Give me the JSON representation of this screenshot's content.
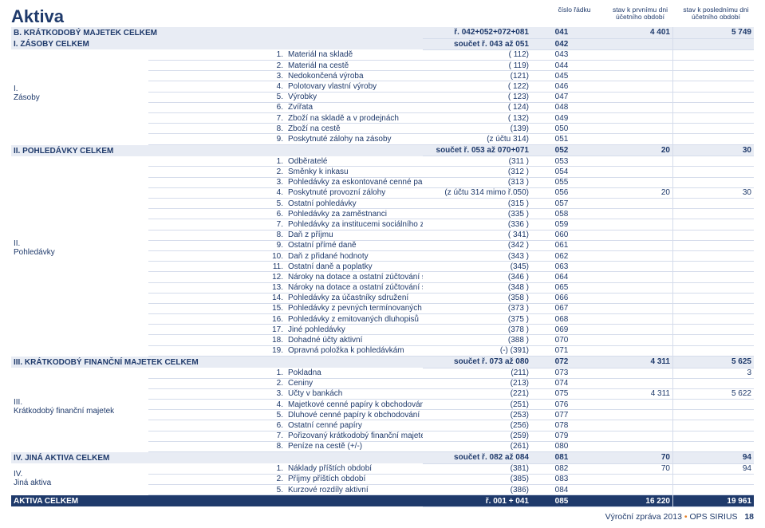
{
  "title": "Aktiva",
  "headers": {
    "c_line": "číslo řádku",
    "c_val": "stav k prvnímu dni účetního období",
    "c_val2": "stav k poslednímu dni účetního období"
  },
  "footer": {
    "text": "Výroční zpráva 2013",
    "org": "OPS SIRIUS",
    "page": "18"
  },
  "cols": {
    "side": 130,
    "num": 20,
    "ref": 130,
    "line": 70,
    "val": 95,
    "val2": 95
  },
  "rows": [
    {
      "type": "section",
      "side": "B.  KRÁTKODOBÝ MAJETEK CELKEM",
      "num": "",
      "desc": "",
      "ref": "ř. 042+052+072+081",
      "line": "041",
      "v1": "4 401",
      "v2": "5 749"
    },
    {
      "type": "section",
      "side": "I.   ZÁSOBY CELKEM",
      "num": "",
      "desc": "",
      "ref": "součet ř. 043 až 051",
      "line": "042",
      "v1": "",
      "v2": ""
    },
    {
      "type": "row",
      "side_label": "I.\nZásoby",
      "side_span": 9,
      "num": "1.",
      "desc": "Materiál na skladě",
      "ref": "( 112)",
      "line": "043",
      "v1": "",
      "v2": ""
    },
    {
      "type": "row",
      "num": "2.",
      "desc": "Materiál na cestě",
      "ref": "( 119)",
      "line": "044",
      "v1": "",
      "v2": ""
    },
    {
      "type": "row",
      "num": "3.",
      "desc": "Nedokončená výroba",
      "ref": "(121)",
      "line": "045",
      "v1": "",
      "v2": ""
    },
    {
      "type": "row",
      "num": "4.",
      "desc": "Polotovary vlastní výroby",
      "ref": "( 122)",
      "line": "046",
      "v1": "",
      "v2": ""
    },
    {
      "type": "row",
      "num": "5.",
      "desc": "Výrobky",
      "ref": "( 123)",
      "line": "047",
      "v1": "",
      "v2": ""
    },
    {
      "type": "row",
      "num": "6.",
      "desc": "Zvířata",
      "ref": "( 124)",
      "line": "048",
      "v1": "",
      "v2": ""
    },
    {
      "type": "row",
      "num": "7.",
      "desc": "Zboží na skladě a v prodejnách",
      "ref": "( 132)",
      "line": "049",
      "v1": "",
      "v2": ""
    },
    {
      "type": "row",
      "num": "8.",
      "desc": "Zboží na cestě",
      "ref": "(139)",
      "line": "050",
      "v1": "",
      "v2": ""
    },
    {
      "type": "row",
      "num": "9.",
      "desc": "Poskytnuté zálohy na zásoby",
      "ref": "(z účtu 314)",
      "line": "051",
      "v1": "",
      "v2": ""
    },
    {
      "type": "section",
      "side": "II.   POHLEDÁVKY CELKEM",
      "num": "",
      "desc": "",
      "ref": "součet ř. 053 až 070+071",
      "line": "052",
      "v1": "20",
      "v2": "30"
    },
    {
      "type": "row",
      "side_label": "II.\nPohledávky",
      "side_span": 19,
      "num": "1.",
      "desc": "Odběratelé",
      "ref": "(311 )",
      "line": "053",
      "v1": "",
      "v2": ""
    },
    {
      "type": "row",
      "num": "2.",
      "desc": "Směnky k inkasu",
      "ref": "(312 )",
      "line": "054",
      "v1": "",
      "v2": ""
    },
    {
      "type": "row",
      "num": "3.",
      "desc": "Pohledávky za eskontované cenné papíry",
      "ref": "(313 )",
      "line": "055",
      "v1": "",
      "v2": ""
    },
    {
      "type": "row",
      "num": "4.",
      "desc": "Poskytnuté provozní zálohy",
      "ref": "(z účtu 314 mimo ř.050)",
      "line": "056",
      "v1": "20",
      "v2": "30"
    },
    {
      "type": "row",
      "num": "5.",
      "desc": "Ostatní pohledávky",
      "ref": "(315 )",
      "line": "057",
      "v1": "",
      "v2": ""
    },
    {
      "type": "row",
      "num": "6.",
      "desc": "Pohledávky za zaměstnanci",
      "ref": "(335 )",
      "line": "058",
      "v1": "",
      "v2": ""
    },
    {
      "type": "row",
      "num": "7.",
      "desc": "Pohledávky za institucemi sociálního zabezpeč. a veř. zdrav. pojištění",
      "ref": "(336 )",
      "line": "059",
      "v1": "",
      "v2": ""
    },
    {
      "type": "row",
      "num": "8.",
      "desc": "Daň z příjmu",
      "ref": "( 341)",
      "line": "060",
      "v1": "",
      "v2": ""
    },
    {
      "type": "row",
      "num": "9.",
      "desc": "Ostatní přímé daně",
      "ref": "(342 )",
      "line": "061",
      "v1": "",
      "v2": ""
    },
    {
      "type": "row",
      "num": "10.",
      "desc": "Daň z přidané hodnoty",
      "ref": "(343 )",
      "line": "062",
      "v1": "",
      "v2": ""
    },
    {
      "type": "row",
      "num": "11.",
      "desc": "Ostatní daně a poplatky",
      "ref": "(345)",
      "line": "063",
      "v1": "",
      "v2": ""
    },
    {
      "type": "row",
      "num": "12.",
      "desc": "Nároky na dotace a ostatní zúčtování se státním rozpočtem",
      "ref": "(346 )",
      "line": "064",
      "v1": "",
      "v2": ""
    },
    {
      "type": "row",
      "num": "13.",
      "desc": "Nároky na dotace a ostatní zúčtování s rozp. orgánů územ. samostr. celků",
      "ref": "(348 )",
      "line": "065",
      "v1": "",
      "v2": ""
    },
    {
      "type": "row",
      "num": "14.",
      "desc": "Pohledávky za účastníky sdružení",
      "ref": "(358 )",
      "line": "066",
      "v1": "",
      "v2": ""
    },
    {
      "type": "row",
      "num": "15.",
      "desc": "Pohledávky z pevných termínovaných operací",
      "ref": "(373 )",
      "line": "067",
      "v1": "",
      "v2": ""
    },
    {
      "type": "row",
      "num": "16.",
      "desc": "Pohledávky z emitovaných dluhopisů",
      "ref": "(375 )",
      "line": "068",
      "v1": "",
      "v2": ""
    },
    {
      "type": "row",
      "num": "17.",
      "desc": "Jiné pohledávky",
      "ref": "(378 )",
      "line": "069",
      "v1": "",
      "v2": ""
    },
    {
      "type": "row",
      "num": "18.",
      "desc": "Dohadné účty aktivní",
      "ref": "(388 )",
      "line": "070",
      "v1": "",
      "v2": ""
    },
    {
      "type": "row",
      "num": "19.",
      "desc": "Opravná položka k pohledávkám",
      "ref": "(-)           (391)",
      "line": "071",
      "v1": "",
      "v2": ""
    },
    {
      "type": "section",
      "side": "III.  KRÁTKODOBÝ FINANČNÍ MAJETEK CELKEM",
      "num": "",
      "desc": "",
      "ref": "součet ř. 073 až 080",
      "line": "072",
      "v1": "4 311",
      "v2": "5 625"
    },
    {
      "type": "row",
      "side_label": "III.\nKrátkodobý finanční majetek",
      "side_span": 8,
      "num": "1.",
      "desc": "Pokladna",
      "ref": "(211)",
      "line": "073",
      "v1": "",
      "v2": "3"
    },
    {
      "type": "row",
      "num": "2.",
      "desc": "Ceniny",
      "ref": "(213)",
      "line": "074",
      "v1": "",
      "v2": ""
    },
    {
      "type": "row",
      "num": "3.",
      "desc": "Účty v bankách",
      "ref": "(221)",
      "line": "075",
      "v1": "4 311",
      "v2": "5 622"
    },
    {
      "type": "row",
      "num": "4.",
      "desc": "Majetkové cenné papíry k obchodování",
      "ref": "(251)",
      "line": "076",
      "v1": "",
      "v2": ""
    },
    {
      "type": "row",
      "num": "5.",
      "desc": "Dluhové cenné papíry k obchodování",
      "ref": "(253)",
      "line": "077",
      "v1": "",
      "v2": ""
    },
    {
      "type": "row",
      "num": "6.",
      "desc": "Ostatní cenné papíry",
      "ref": "(256)",
      "line": "078",
      "v1": "",
      "v2": ""
    },
    {
      "type": "row",
      "num": "7.",
      "desc": "Pořizovaný krátkodobý finanční majetek",
      "ref": "(259)",
      "line": "079",
      "v1": "",
      "v2": ""
    },
    {
      "type": "row",
      "num": "8.",
      "desc": "Peníze na cestě (+/-)",
      "ref": "(261)",
      "line": "080",
      "v1": "",
      "v2": ""
    },
    {
      "type": "section",
      "side": "IV.   JINÁ AKTIVA CELKEM",
      "num": "",
      "desc": "",
      "ref": "součet ř. 082 až 084",
      "line": "081",
      "v1": "70",
      "v2": "94"
    },
    {
      "type": "row",
      "side_label": "IV.\nJiná aktiva",
      "side_span": 3,
      "num": "1.",
      "desc": "Náklady příštích období",
      "ref": "(381)",
      "line": "082",
      "v1": "70",
      "v2": "94"
    },
    {
      "type": "row",
      "num": "2.",
      "desc": "Příjmy příštích období",
      "ref": "(385)",
      "line": "083",
      "v1": "",
      "v2": ""
    },
    {
      "type": "row",
      "num": "5.",
      "desc": "Kurzové rozdíly aktivní",
      "ref": "(386)",
      "line": "084",
      "v1": "",
      "v2": ""
    },
    {
      "type": "total",
      "side": "AKTIVA CELKEM",
      "num": "",
      "desc": "",
      "ref": "ř. 001 + 041",
      "line": "085",
      "v1": "16 220",
      "v2": "19 961"
    }
  ]
}
